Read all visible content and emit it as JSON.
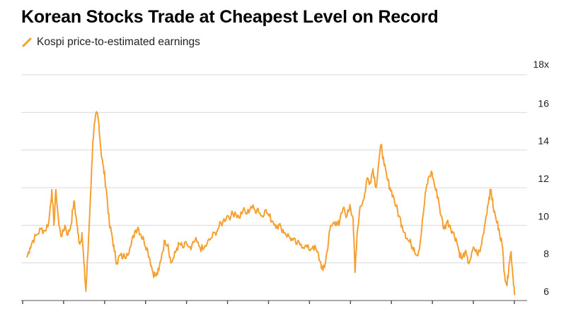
{
  "title": "Korean Stocks Trade at Cheapest Level on Record",
  "colors": {
    "series": "#f6a032",
    "grid": "#d9d9d9",
    "axis": "#555555"
  },
  "chart_data": {
    "type": "line",
    "title": "Korean Stocks Trade at Cheapest Level on Record",
    "xlabel": "",
    "ylabel": "",
    "ylim": [
      6,
      18
    ],
    "yticks": [
      6,
      8,
      10,
      12,
      14,
      16,
      18
    ],
    "ytick_labels": [
      "6",
      "8",
      "10",
      "12",
      "14",
      "16",
      "18x"
    ],
    "x_tick_count": 13,
    "grid": true,
    "legend": "top-left",
    "series": [
      {
        "name": "Kospi price-to-estimated earnings",
        "points": [
          [
            0.0,
            8.3
          ],
          [
            0.006,
            8.8
          ],
          [
            0.012,
            9.2
          ],
          [
            0.02,
            9.5
          ],
          [
            0.028,
            9.8
          ],
          [
            0.036,
            9.7
          ],
          [
            0.044,
            10.2
          ],
          [
            0.05,
            11.9
          ],
          [
            0.054,
            10.0
          ],
          [
            0.058,
            11.9
          ],
          [
            0.064,
            10.0
          ],
          [
            0.07,
            9.4
          ],
          [
            0.076,
            10.0
          ],
          [
            0.082,
            9.5
          ],
          [
            0.088,
            10.0
          ],
          [
            0.094,
            11.3
          ],
          [
            0.098,
            10.5
          ],
          [
            0.102,
            9.6
          ],
          [
            0.106,
            9.0
          ],
          [
            0.11,
            9.6
          ],
          [
            0.114,
            8.0
          ],
          [
            0.118,
            6.5
          ],
          [
            0.122,
            8.5
          ],
          [
            0.127,
            11.5
          ],
          [
            0.132,
            14.5
          ],
          [
            0.136,
            15.5
          ],
          [
            0.14,
            16.0
          ],
          [
            0.144,
            15.4
          ],
          [
            0.148,
            14.0
          ],
          [
            0.152,
            13.2
          ],
          [
            0.156,
            12.5
          ],
          [
            0.16,
            11.6
          ],
          [
            0.165,
            10.0
          ],
          [
            0.17,
            9.5
          ],
          [
            0.175,
            8.6
          ],
          [
            0.18,
            8.0
          ],
          [
            0.186,
            8.4
          ],
          [
            0.192,
            8.3
          ],
          [
            0.2,
            8.5
          ],
          [
            0.208,
            8.9
          ],
          [
            0.216,
            9.7
          ],
          [
            0.222,
            9.9
          ],
          [
            0.228,
            9.5
          ],
          [
            0.234,
            9.2
          ],
          [
            0.24,
            8.8
          ],
          [
            0.246,
            8.2
          ],
          [
            0.252,
            7.5
          ],
          [
            0.258,
            7.3
          ],
          [
            0.264,
            7.6
          ],
          [
            0.27,
            8.5
          ],
          [
            0.276,
            9.2
          ],
          [
            0.282,
            9.0
          ],
          [
            0.288,
            8.0
          ],
          [
            0.294,
            8.3
          ],
          [
            0.3,
            8.8
          ],
          [
            0.306,
            9.0
          ],
          [
            0.312,
            8.8
          ],
          [
            0.32,
            9.0
          ],
          [
            0.328,
            8.7
          ],
          [
            0.336,
            9.2
          ],
          [
            0.344,
            8.9
          ],
          [
            0.352,
            8.7
          ],
          [
            0.36,
            9.0
          ],
          [
            0.368,
            9.3
          ],
          [
            0.376,
            9.6
          ],
          [
            0.384,
            9.9
          ],
          [
            0.392,
            10.2
          ],
          [
            0.4,
            10.5
          ],
          [
            0.408,
            10.5
          ],
          [
            0.416,
            10.7
          ],
          [
            0.424,
            10.4
          ],
          [
            0.432,
            10.8
          ],
          [
            0.44,
            10.6
          ],
          [
            0.448,
            11.0
          ],
          [
            0.456,
            10.8
          ],
          [
            0.462,
            10.9
          ],
          [
            0.468,
            10.5
          ],
          [
            0.476,
            10.8
          ],
          [
            0.484,
            10.5
          ],
          [
            0.492,
            10.2
          ],
          [
            0.5,
            10.0
          ],
          [
            0.508,
            9.9
          ],
          [
            0.516,
            9.6
          ],
          [
            0.524,
            9.4
          ],
          [
            0.532,
            9.2
          ],
          [
            0.54,
            9.0
          ],
          [
            0.548,
            9.0
          ],
          [
            0.556,
            8.9
          ],
          [
            0.564,
            8.7
          ],
          [
            0.572,
            8.9
          ],
          [
            0.58,
            8.6
          ],
          [
            0.586,
            8.1
          ],
          [
            0.592,
            7.6
          ],
          [
            0.596,
            7.9
          ],
          [
            0.6,
            8.6
          ],
          [
            0.606,
            9.8
          ],
          [
            0.612,
            10.1
          ],
          [
            0.618,
            10.2
          ],
          [
            0.624,
            10.0
          ],
          [
            0.632,
            10.9
          ],
          [
            0.64,
            10.5
          ],
          [
            0.646,
            11.1
          ],
          [
            0.652,
            10.4
          ],
          [
            0.656,
            7.5
          ],
          [
            0.66,
            9.5
          ],
          [
            0.666,
            11.0
          ],
          [
            0.674,
            11.4
          ],
          [
            0.68,
            12.5
          ],
          [
            0.686,
            12.3
          ],
          [
            0.692,
            13.0
          ],
          [
            0.698,
            12.0
          ],
          [
            0.704,
            13.5
          ],
          [
            0.709,
            14.3
          ],
          [
            0.714,
            13.2
          ],
          [
            0.72,
            12.5
          ],
          [
            0.726,
            12.0
          ],
          [
            0.732,
            11.6
          ],
          [
            0.738,
            11.0
          ],
          [
            0.744,
            10.5
          ],
          [
            0.75,
            10.0
          ],
          [
            0.756,
            9.6
          ],
          [
            0.762,
            9.2
          ],
          [
            0.768,
            9.0
          ],
          [
            0.774,
            8.8
          ],
          [
            0.78,
            8.4
          ],
          [
            0.786,
            9.0
          ],
          [
            0.792,
            10.5
          ],
          [
            0.798,
            11.9
          ],
          [
            0.804,
            12.6
          ],
          [
            0.81,
            12.8
          ],
          [
            0.816,
            12.0
          ],
          [
            0.822,
            11.5
          ],
          [
            0.828,
            10.5
          ],
          [
            0.834,
            9.8
          ],
          [
            0.84,
            10.2
          ],
          [
            0.846,
            10.0
          ],
          [
            0.852,
            9.6
          ],
          [
            0.858,
            9.3
          ],
          [
            0.864,
            8.6
          ],
          [
            0.87,
            8.2
          ],
          [
            0.876,
            8.6
          ],
          [
            0.882,
            8.0
          ],
          [
            0.888,
            8.3
          ],
          [
            0.894,
            8.8
          ],
          [
            0.9,
            8.5
          ],
          [
            0.906,
            8.6
          ],
          [
            0.912,
            9.5
          ],
          [
            0.918,
            10.5
          ],
          [
            0.924,
            11.5
          ],
          [
            0.928,
            11.9
          ],
          [
            0.932,
            11.0
          ],
          [
            0.938,
            10.3
          ],
          [
            0.944,
            9.8
          ],
          [
            0.95,
            9.0
          ],
          [
            0.955,
            7.4
          ],
          [
            0.96,
            6.8
          ],
          [
            0.964,
            8.0
          ],
          [
            0.968,
            8.6
          ],
          [
            0.972,
            7.2
          ],
          [
            0.976,
            6.3
          ]
        ]
      }
    ]
  }
}
